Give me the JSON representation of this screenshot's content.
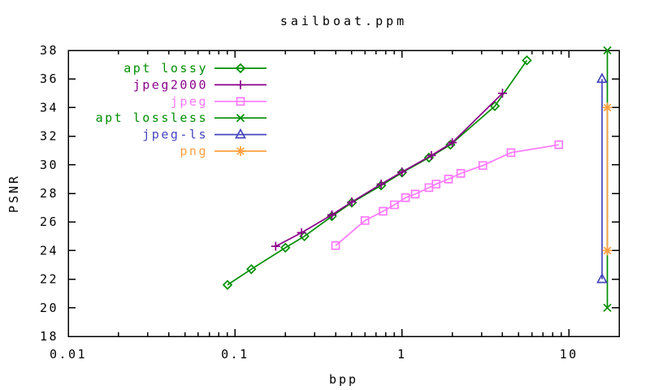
{
  "title": "sailboat.ppm",
  "xlabel": "bpp",
  "ylabel": "PSNR",
  "chart_data": {
    "type": "line",
    "title": "sailboat.ppm",
    "xlabel": "bpp",
    "ylabel": "PSNR",
    "x_scale": "log",
    "xlim": [
      0.01,
      20
    ],
    "ylim": [
      18,
      38
    ],
    "x_major_ticks": [
      0.01,
      0.1,
      1,
      10
    ],
    "x_tick_labels": [
      "0.01",
      "0.1",
      "1",
      "10"
    ],
    "y_ticks": [
      18,
      20,
      22,
      24,
      26,
      28,
      30,
      32,
      34,
      36,
      38
    ],
    "grid": false,
    "legend_position": "inside-top-left",
    "axis_color": "#000000",
    "series": [
      {
        "name": "apt lossy",
        "color": "#008f00",
        "marker": "diamond",
        "points": [
          [
            0.09,
            21.6
          ],
          [
            0.125,
            22.7
          ],
          [
            0.2,
            24.2
          ],
          [
            0.26,
            25.0
          ],
          [
            0.38,
            26.4
          ],
          [
            0.5,
            27.35
          ],
          [
            0.75,
            28.55
          ],
          [
            1.0,
            29.45
          ],
          [
            1.45,
            30.5
          ],
          [
            1.95,
            31.4
          ],
          [
            3.6,
            34.1
          ],
          [
            5.6,
            37.3
          ]
        ]
      },
      {
        "name": "jpeg2000",
        "color": "#8b008b",
        "marker": "plus",
        "points": [
          [
            0.175,
            24.3
          ],
          [
            0.25,
            25.25
          ],
          [
            0.38,
            26.5
          ],
          [
            0.5,
            27.4
          ],
          [
            0.75,
            28.65
          ],
          [
            1.0,
            29.5
          ],
          [
            1.5,
            30.65
          ],
          [
            2.0,
            31.55
          ],
          [
            4.0,
            35.0
          ]
        ]
      },
      {
        "name": "jpeg",
        "color": "#ff78ff",
        "marker": "square",
        "points": [
          [
            0.4,
            24.35
          ],
          [
            0.6,
            26.1
          ],
          [
            0.77,
            26.75
          ],
          [
            0.9,
            27.2
          ],
          [
            1.05,
            27.7
          ],
          [
            1.2,
            27.95
          ],
          [
            1.45,
            28.4
          ],
          [
            1.6,
            28.65
          ],
          [
            1.9,
            29.0
          ],
          [
            2.25,
            29.4
          ],
          [
            3.05,
            29.95
          ],
          [
            4.5,
            30.85
          ],
          [
            8.7,
            31.4
          ]
        ]
      },
      {
        "name": "apt lossless",
        "color": "#008f00",
        "marker": "x",
        "points": [
          [
            17.0,
            20.0
          ],
          [
            17.0,
            38.0
          ]
        ]
      },
      {
        "name": "jpeg-ls",
        "color": "#4646be",
        "marker": "triangle",
        "points": [
          [
            15.8,
            22.0
          ],
          [
            15.8,
            36.0
          ]
        ]
      },
      {
        "name": "png",
        "color": "#ffa040",
        "marker": "asterisk",
        "points": [
          [
            17.0,
            24.0
          ],
          [
            17.0,
            34.0
          ]
        ]
      }
    ]
  }
}
